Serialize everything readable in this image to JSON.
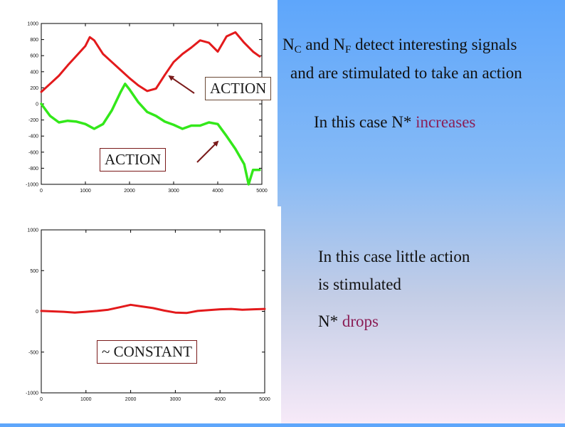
{
  "captions": {
    "top_line1_n1": "N",
    "top_line1_sub1": "C",
    "top_line1_and": " and ",
    "top_line1_n2": "N",
    "top_line1_sub2": "F",
    "top_line1_rest": " detect interesting signals",
    "top_line2": "and are stimulated to take an action",
    "top_line3_prefix": "In this case N* ",
    "top_line3_accent": "increases",
    "bottom_line1": "In this case little action",
    "bottom_line2": "is stimulated",
    "bottom_line3_prefix": "N* ",
    "bottom_line3_accent": "drops"
  },
  "labels": {
    "action_1": "ACTION",
    "action_2": "ACTION",
    "constant": "~ CONSTANT"
  },
  "colors": {
    "red_series": "#e31a1c",
    "green_series": "#33e81a",
    "accent_text": "#8b1e56",
    "arrow": "#7a1a1a"
  },
  "chart_data": [
    {
      "type": "line",
      "title": "",
      "xlabel": "",
      "ylabel": "",
      "xlim": [
        0,
        5000
      ],
      "ylim": [
        -1000,
        1000
      ],
      "xticks": [
        "0",
        "1000",
        "2000",
        "3000",
        "4000",
        "5000"
      ],
      "yticks": [
        "1000",
        "800",
        "600",
        "400",
        "200",
        "0",
        "-200",
        "-400",
        "-600",
        "-800",
        "-1000"
      ],
      "grid": false,
      "series": [
        {
          "color": "red",
          "x": [
            0,
            200,
            400,
            600,
            800,
            1000,
            1100,
            1200,
            1400,
            1600,
            1800,
            2000,
            2200,
            2400,
            2600,
            2800,
            3000,
            3200,
            3400,
            3600,
            3800,
            4000,
            4200,
            4400,
            4600,
            4800,
            4950
          ],
          "y": [
            150,
            250,
            350,
            480,
            600,
            720,
            830,
            790,
            620,
            520,
            420,
            320,
            230,
            160,
            190,
            360,
            520,
            620,
            700,
            790,
            760,
            650,
            840,
            890,
            760,
            650,
            590
          ]
        },
        {
          "color": "green",
          "x": [
            0,
            200,
            400,
            600,
            800,
            1000,
            1200,
            1400,
            1600,
            1800,
            1900,
            2000,
            2200,
            2400,
            2600,
            2800,
            3000,
            3200,
            3400,
            3600,
            3800,
            4000,
            4200,
            4400,
            4600,
            4700,
            4800,
            4950
          ],
          "y": [
            0,
            -150,
            -230,
            -210,
            -220,
            -250,
            -310,
            -250,
            -80,
            150,
            250,
            180,
            20,
            -100,
            -150,
            -220,
            -260,
            -310,
            -270,
            -270,
            -230,
            -250,
            -400,
            -560,
            -750,
            -1000,
            -820,
            -820
          ]
        }
      ]
    },
    {
      "type": "line",
      "title": "",
      "xlabel": "",
      "ylabel": "",
      "xlim": [
        0,
        5000
      ],
      "ylim": [
        -1000,
        1000
      ],
      "xticks": [
        "0",
        "1000",
        "2000",
        "3000",
        "4000",
        "5000"
      ],
      "yticks": [
        "1000",
        "500",
        "0",
        "-500",
        "-1000"
      ],
      "grid": false,
      "series": [
        {
          "color": "red",
          "x": [
            0,
            250,
            500,
            750,
            1000,
            1250,
            1500,
            1750,
            2000,
            2250,
            2500,
            2750,
            3000,
            3250,
            3500,
            3750,
            4000,
            4250,
            4500,
            4750,
            5000
          ],
          "y": [
            5,
            0,
            -5,
            -15,
            -5,
            5,
            20,
            50,
            80,
            60,
            40,
            10,
            -15,
            -20,
            5,
            15,
            25,
            30,
            20,
            25,
            30
          ]
        }
      ]
    }
  ]
}
